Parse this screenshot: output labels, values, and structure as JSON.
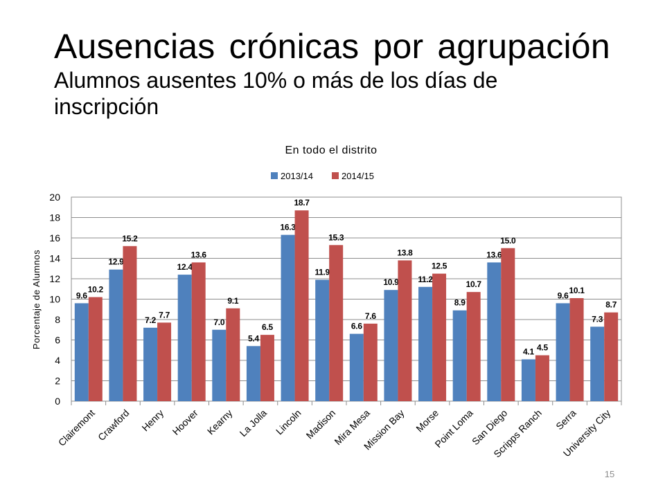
{
  "slide": {
    "title": "Ausencias crónicas por agrupación",
    "subtitle": "Alumnos ausentes 10% o más de los días de inscripción",
    "page_number": "15"
  },
  "colors": {
    "series_2013": "#4f81bd",
    "series_2014": "#c0504d",
    "frame": "#8c8c8c",
    "grid": "#8c8c8c"
  },
  "chart_data": {
    "type": "bar",
    "title": "En todo el distrito",
    "ylabel": "Porcentaje de Alumnos",
    "xlabel": "",
    "ylim": [
      0,
      20
    ],
    "yticks": [
      0,
      2,
      4,
      6,
      8,
      10,
      12,
      14,
      16,
      18,
      20
    ],
    "grid": true,
    "legend": "top-center",
    "categories": [
      "Clairemont",
      "Crawford",
      "Henry",
      "Hoover",
      "Kearny",
      "La Jolla",
      "Lincoln",
      "Madison",
      "Mira Mesa",
      "Mission Bay",
      "Morse",
      "Point Loma",
      "San Diego",
      "Scripps Ranch",
      "Serra",
      "University City"
    ],
    "series": [
      {
        "name": "2013/14",
        "values": [
          9.6,
          12.9,
          7.2,
          12.4,
          7.0,
          5.4,
          16.3,
          11.9,
          6.6,
          10.9,
          11.2,
          8.9,
          13.6,
          4.1,
          9.6,
          7.3
        ]
      },
      {
        "name": "2014/15",
        "values": [
          10.2,
          15.2,
          7.7,
          13.6,
          9.1,
          6.5,
          18.7,
          15.3,
          7.6,
          13.8,
          12.5,
          10.7,
          15.0,
          4.5,
          10.1,
          8.7
        ]
      }
    ]
  }
}
